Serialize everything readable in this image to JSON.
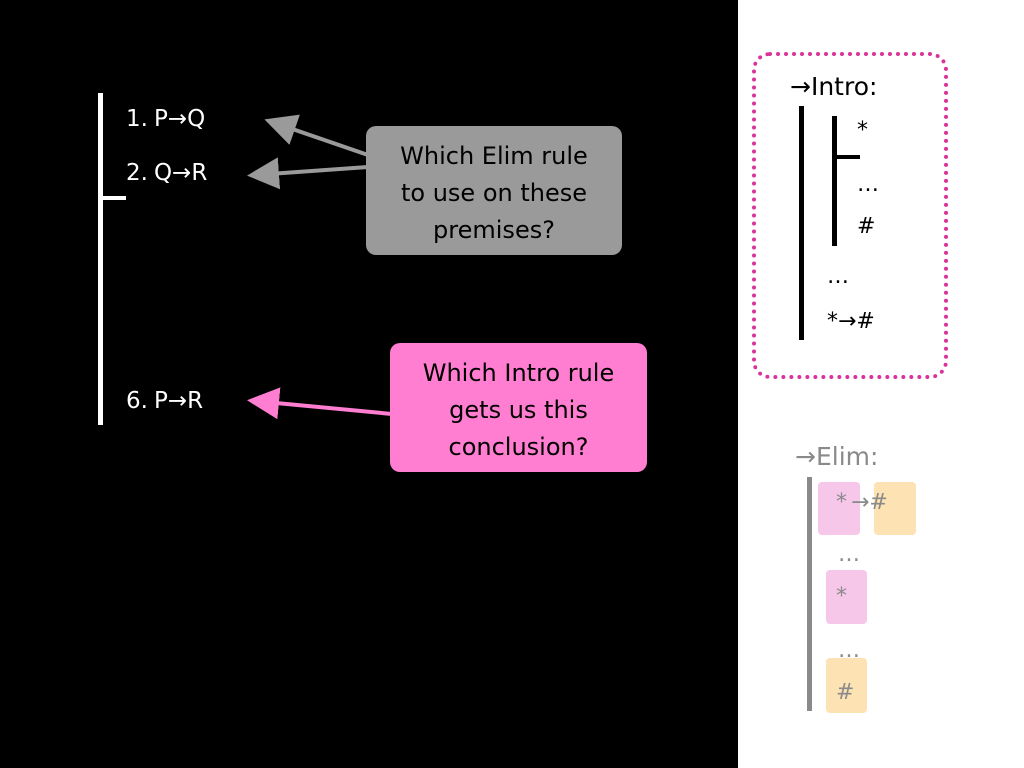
{
  "proof": {
    "lines": [
      {
        "num": "1.",
        "formula": "P→Q"
      },
      {
        "num": "2.",
        "formula": "Q→R"
      },
      {
        "num": "6.",
        "formula": "P→R"
      }
    ]
  },
  "callouts": {
    "elim_question": [
      "Which Elim rule",
      "to use on these",
      "premises?"
    ],
    "intro_question": [
      "Which Intro rule",
      "gets us this",
      "conclusion?"
    ]
  },
  "intro_rule": {
    "title": "→Intro:",
    "assumption": "*",
    "dots_inner": "…",
    "goal": "#",
    "dots_outer": "…",
    "conclusion": "*→#"
  },
  "elim_rule": {
    "title": "→Elim:",
    "conditional_antecedent": "*",
    "conditional_consequent": "→#",
    "dots_1": "…",
    "antecedent": "*",
    "dots_2": "…",
    "result": "#"
  },
  "colors": {
    "background": "#000000",
    "panel": "#ffffff",
    "gray_callout": "#9a9a9a",
    "pink_callout": "#ff7ed1",
    "dotted_border": "#d9339a",
    "pink_highlight": "#f6c7e9",
    "peach_highlight": "#fde2b3"
  }
}
